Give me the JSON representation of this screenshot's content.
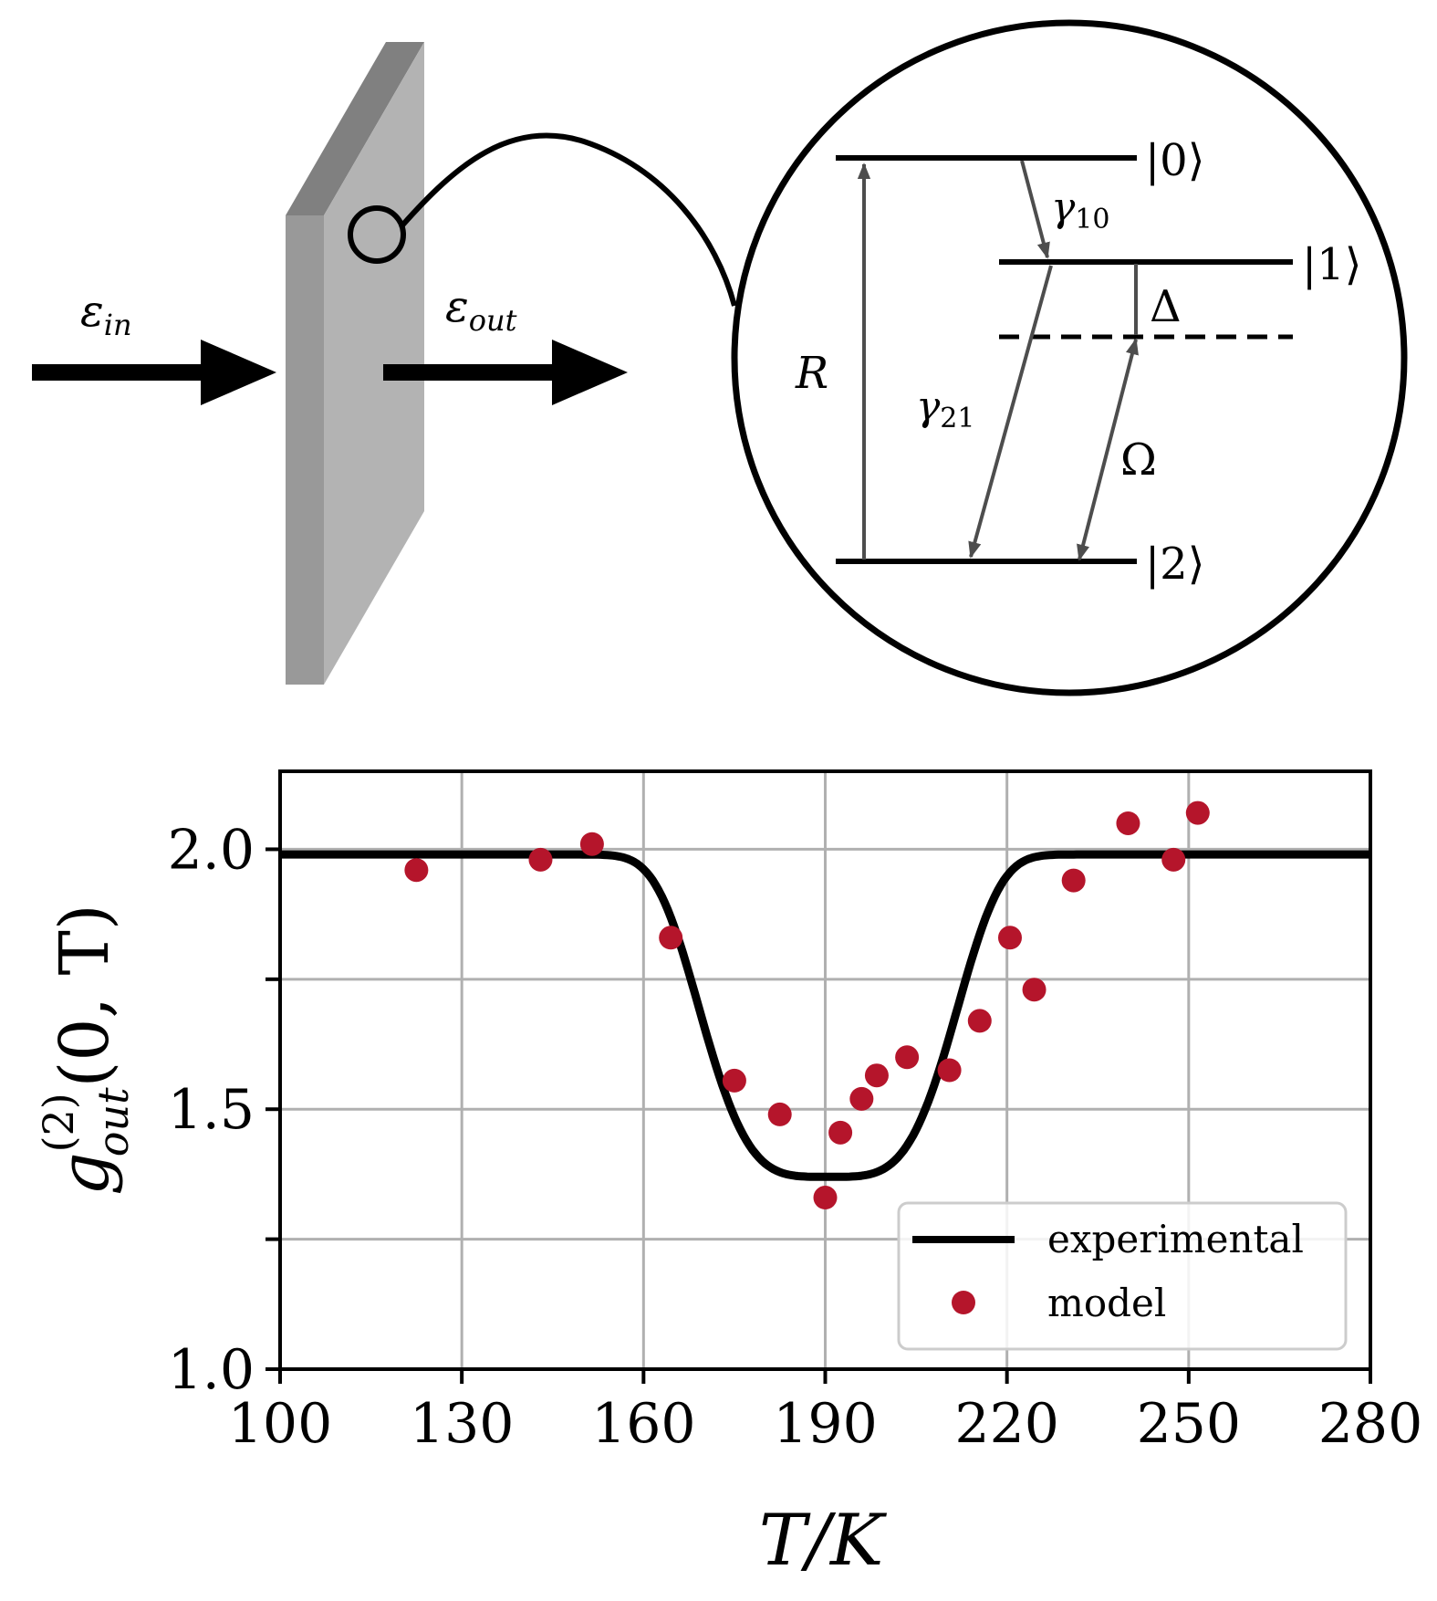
{
  "diagram": {
    "input_field": {
      "symbol": "ε",
      "sub": "in"
    },
    "output_field": {
      "symbol": "ε",
      "sub": "out"
    },
    "levels": {
      "level0": "|0⟩",
      "level1": "|1⟩",
      "level2": "|2⟩"
    },
    "rates": {
      "gamma10": {
        "symbol": "γ",
        "sub": "10"
      },
      "gamma21": {
        "symbol": "γ",
        "sub": "21"
      },
      "pump": "R",
      "detuning": "Δ",
      "rabi": "Ω"
    },
    "colors": {
      "slab_front": "#999999",
      "slab_side": "#b3b3b3",
      "slab_top": "#808080",
      "arrow_gray": "#4d4d4d"
    }
  },
  "chart_data": {
    "type": "line",
    "xlabel": "T/K",
    "ylabel": {
      "base": "g",
      "sup": "(2)",
      "sub": "out",
      "args": "(0, T)"
    },
    "xlim": [
      100,
      280
    ],
    "ylim": [
      1.0,
      2.15
    ],
    "xticks": [
      100,
      130,
      160,
      190,
      220,
      250,
      280
    ],
    "yticks": [
      1.0,
      1.5,
      2.0
    ],
    "ytick_labels": [
      "1.0",
      "1.5",
      "2.0"
    ],
    "grid_y": [
      1.0,
      1.25,
      1.5,
      1.75,
      2.0
    ],
    "grid": true,
    "legend_position": "lower-right",
    "series": [
      {
        "name": "experimental",
        "kind": "line",
        "color": "#000000",
        "model": {
          "baseline": 1.99,
          "depth": 0.62,
          "center": 190.5,
          "halfwidth": 23,
          "exponent": 4
        },
        "x_range": [
          100,
          280
        ]
      },
      {
        "name": "model",
        "kind": "scatter",
        "color": "#b5152b",
        "points": [
          [
            122.5,
            1.96
          ],
          [
            143.0,
            1.98
          ],
          [
            151.5,
            2.01
          ],
          [
            164.5,
            1.83
          ],
          [
            175.0,
            1.555
          ],
          [
            182.5,
            1.49
          ],
          [
            190.0,
            1.33
          ],
          [
            192.5,
            1.455
          ],
          [
            196.0,
            1.52
          ],
          [
            198.5,
            1.565
          ],
          [
            203.5,
            1.6
          ],
          [
            210.5,
            1.575
          ],
          [
            215.5,
            1.67
          ],
          [
            220.5,
            1.83
          ],
          [
            224.5,
            1.73
          ],
          [
            231.0,
            1.94
          ],
          [
            240.0,
            2.05
          ],
          [
            247.5,
            1.98
          ],
          [
            251.5,
            2.07
          ]
        ]
      }
    ]
  }
}
